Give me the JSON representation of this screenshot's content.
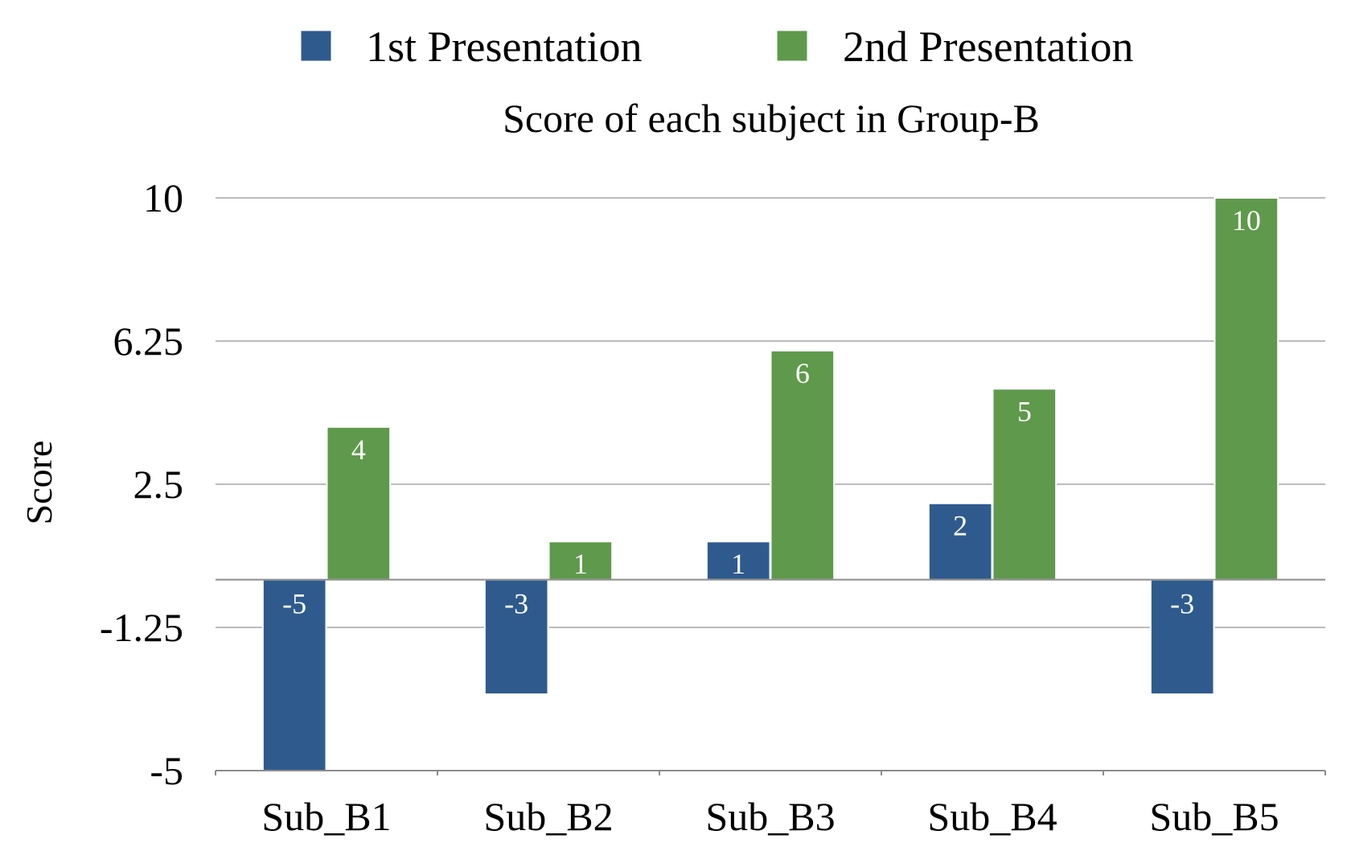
{
  "chart_data": {
    "type": "bar",
    "title": "Score of each subject in Group-B",
    "xlabel": "",
    "ylabel": "Score",
    "categories": [
      "Sub_B1",
      "Sub_B2",
      "Sub_B3",
      "Sub_B4",
      "Sub_B5"
    ],
    "series": [
      {
        "name": "1st Presentation",
        "color": "#2f5a8d",
        "values": [
          -5,
          -3,
          1,
          2,
          -3
        ]
      },
      {
        "name": "2nd Presentation",
        "color": "#5f994c",
        "values": [
          4,
          1,
          6,
          5,
          10
        ]
      }
    ],
    "yticks": [
      10,
      6.25,
      2.5,
      -1.25,
      -5
    ],
    "ytick_labels": [
      "10",
      "6.25",
      "2.5",
      "-1.25",
      "-5"
    ],
    "ylim": [
      -5,
      10
    ],
    "grid": true,
    "legend_position": "top-center",
    "data_labels": true
  }
}
